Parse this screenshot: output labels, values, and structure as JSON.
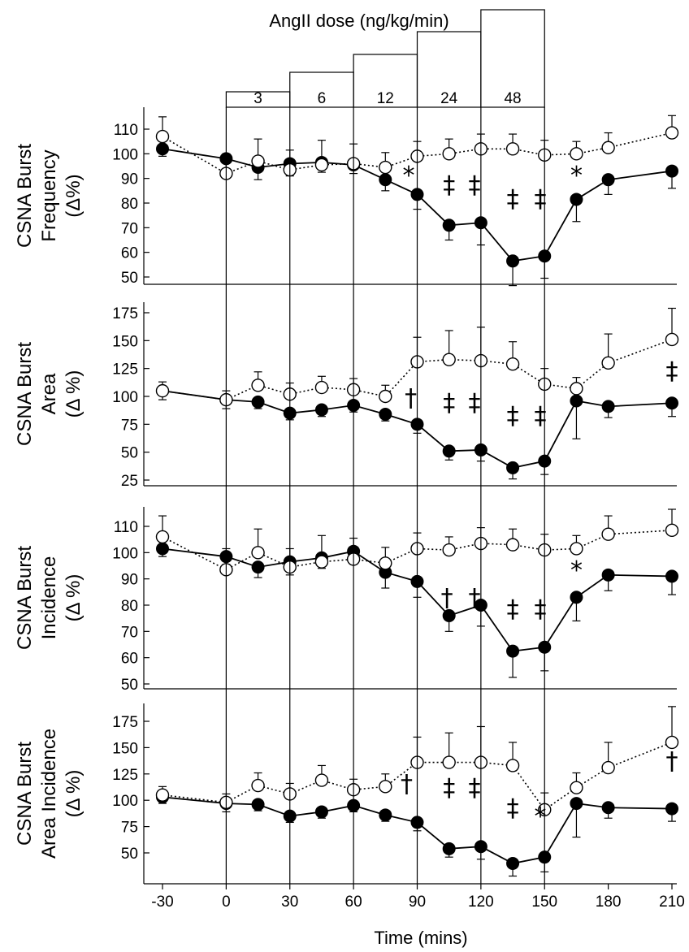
{
  "chart_data": {
    "type": "line",
    "dose_title": "AngII dose (ng/kg/min)",
    "doses": [
      {
        "label": "3",
        "start": 0,
        "end": 30
      },
      {
        "label": "6",
        "start": 30,
        "end": 60
      },
      {
        "label": "12",
        "start": 60,
        "end": 90
      },
      {
        "label": "24",
        "start": 90,
        "end": 120
      },
      {
        "label": "48",
        "start": 120,
        "end": 150
      }
    ],
    "xlabel": "Time (mins)",
    "x": [
      -30,
      0,
      15,
      30,
      45,
      60,
      75,
      90,
      105,
      120,
      135,
      150,
      165,
      180,
      210
    ],
    "xticks": [
      "-30",
      "0",
      "30",
      "60",
      "90",
      "120",
      "150",
      "180",
      "210"
    ],
    "panels": [
      {
        "ylabel": [
          "CSNA Burst",
          "Frequency",
          "(Δ%)"
        ],
        "yticks": [
          "50",
          "60",
          "70",
          "80",
          "90",
          "100",
          "110"
        ],
        "ylim": [
          45,
          120
        ],
        "series": [
          {
            "style": "filled",
            "values": [
              102,
              98,
              94.5,
              96,
              96.5,
              95.5,
              89.5,
              83.5,
              71,
              72,
              56.5,
              58.5,
              81.5,
              89.5,
              93
            ],
            "err": [
              3,
              4,
              5,
              5,
              4,
              3.5,
              4.5,
              6,
              6,
              9,
              10,
              9,
              9,
              6,
              7
            ]
          },
          {
            "style": "open",
            "values": [
              107,
              92,
              97,
              93.5,
              95.5,
              96,
              94.5,
              99,
              100,
              102,
              102,
              99.5,
              100,
              102.5,
              108.5
            ],
            "err": [
              8,
              8,
              9,
              8,
              10,
              8,
              6,
              6,
              6,
              6,
              6,
              6,
              5,
              6,
              7
            ]
          }
        ],
        "annotations": [
          {
            "x": 86,
            "text": "*"
          },
          {
            "x": 105,
            "text": "‡"
          },
          {
            "x": 117,
            "text": "‡"
          },
          {
            "x": 135,
            "text": "‡"
          },
          {
            "x": 148,
            "text": "‡"
          },
          {
            "x": 165,
            "text": "*"
          }
        ]
      },
      {
        "ylabel": [
          "CSNA Burst",
          "Area",
          "(Δ %)"
        ],
        "yticks": [
          "25",
          "50",
          "75",
          "100",
          "125",
          "150",
          "175"
        ],
        "ylim": [
          20,
          185
        ],
        "series": [
          {
            "style": "filled",
            "values": [
              105,
              97,
              95,
              85,
              88,
              92,
              84,
              75,
              51,
              52,
              36,
              42,
              96,
              91,
              94
            ],
            "err": [
              8,
              8,
              6,
              6,
              6,
              6,
              6,
              8,
              8,
              10,
              10,
              12,
              34,
              10,
              12
            ]
          },
          {
            "style": "open",
            "values": [
              105,
              97,
              110,
              102,
              108,
              106,
              100,
              131,
              133,
              132,
              129,
              111,
              107,
              130,
              151
            ],
            "err": [
              8,
              8,
              12,
              10,
              10,
              10,
              10,
              22,
              26,
              30,
              20,
              14,
              10,
              26,
              28
            ]
          }
        ],
        "annotations": [
          {
            "x": 87,
            "text": "†"
          },
          {
            "x": 105,
            "text": "‡"
          },
          {
            "x": 117,
            "text": "‡"
          },
          {
            "x": 135,
            "text": "‡"
          },
          {
            "x": 148,
            "text": "‡"
          },
          {
            "x": 210,
            "text": "‡"
          }
        ]
      },
      {
        "ylabel": [
          "CSNA Burst",
          "Incidence",
          "(Δ %)"
        ],
        "yticks": [
          "50",
          "60",
          "70",
          "80",
          "90",
          "100",
          "110"
        ],
        "ylim": [
          50,
          118
        ],
        "series": [
          {
            "style": "filled",
            "values": [
              101.5,
              98.5,
              94.5,
              96.5,
              98,
              100.5,
              92.5,
              89,
              76,
              80,
              62.5,
              64,
              83,
              91.5,
              91
            ],
            "err": [
              3,
              3,
              4,
              5,
              4,
              4,
              6,
              6,
              6,
              8,
              10,
              9,
              9,
              6,
              7
            ]
          },
          {
            "style": "open",
            "values": [
              106,
              93.5,
              100,
              94.5,
              96.5,
              97.5,
              96,
              101.5,
              101,
              103.5,
              103,
              101,
              101.5,
              107,
              108.5
            ],
            "err": [
              8,
              8,
              9,
              7,
              10,
              8,
              6,
              6,
              5,
              6,
              6,
              6,
              5,
              7,
              8
            ]
          }
        ],
        "annotations": [
          {
            "x": 104,
            "text": "†"
          },
          {
            "x": 117,
            "text": "†"
          },
          {
            "x": 135,
            "text": "‡"
          },
          {
            "x": 148,
            "text": "‡"
          },
          {
            "x": 165,
            "text": "*"
          }
        ]
      },
      {
        "ylabel": [
          "CSNA Burst",
          "Area Incidence",
          "(Δ %)"
        ],
        "yticks": [
          "50",
          "75",
          "100",
          "125",
          "150",
          "175"
        ],
        "ylim": [
          30,
          185
        ],
        "series": [
          {
            "style": "filled",
            "values": [
              103,
              97,
              96,
              85,
              89,
              95,
              86,
              79,
              54,
              56,
              40,
              46,
              97,
              93,
              92
            ],
            "err": [
              6,
              8,
              6,
              6,
              6,
              6,
              6,
              8,
              8,
              12,
              12,
              14,
              32,
              10,
              12
            ]
          },
          {
            "style": "open",
            "values": [
              105,
              98,
              114,
              106,
              119,
              110,
              113,
              136,
              136,
              136,
              133,
              91,
              112,
              131,
              155
            ],
            "err": [
              8,
              8,
              12,
              10,
              14,
              10,
              12,
              24,
              28,
              34,
              22,
              16,
              14,
              24,
              34
            ]
          }
        ],
        "annotations": [
          {
            "x": 85,
            "text": "†"
          },
          {
            "x": 105,
            "text": "‡"
          },
          {
            "x": 117,
            "text": "‡"
          },
          {
            "x": 135,
            "text": "‡"
          },
          {
            "x": 148,
            "text": "*"
          },
          {
            "x": 210,
            "text": "†"
          }
        ]
      }
    ]
  }
}
